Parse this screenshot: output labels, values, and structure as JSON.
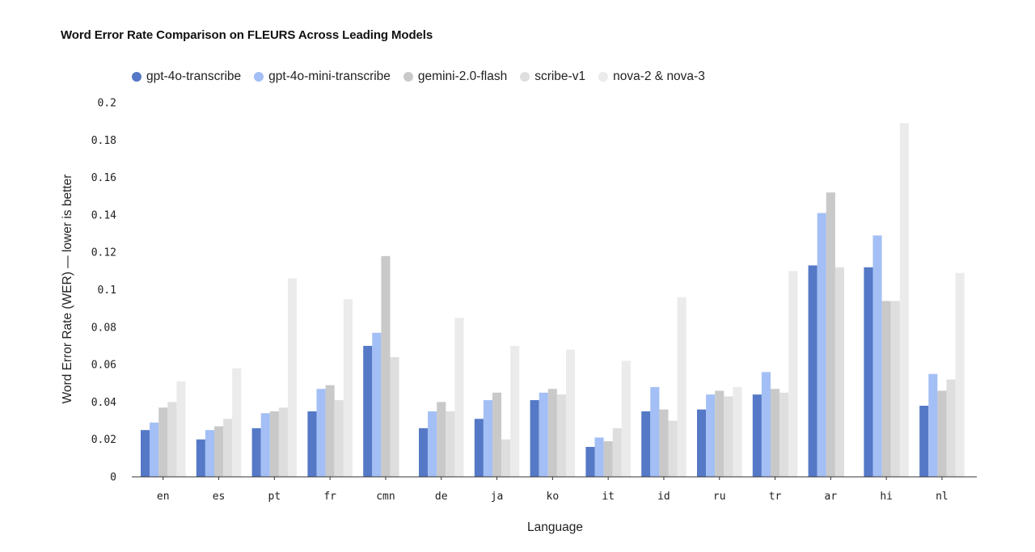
{
  "chart_data": {
    "type": "bar",
    "title": "Word Error Rate Comparison on FLEURS Across Leading Models",
    "xlabel": "Language",
    "ylabel": "Word Error Rate (WER) — lower is better",
    "ylim": [
      0,
      0.2
    ],
    "yticks": [
      "0",
      "0.02",
      "0.04",
      "0.06",
      "0.08",
      "0.1",
      "0.12",
      "0.14",
      "0.16",
      "0.18",
      "0.2"
    ],
    "grid": false,
    "legend_position": "top-left",
    "categories": [
      "en",
      "es",
      "pt",
      "fr",
      "cmn",
      "de",
      "ja",
      "ko",
      "it",
      "id",
      "ru",
      "tr",
      "ar",
      "hi",
      "nl"
    ],
    "series": [
      {
        "name": "gpt-4o-transcribe",
        "color": "#5579c6",
        "values": [
          0.025,
          0.02,
          0.026,
          0.035,
          0.07,
          0.026,
          0.031,
          0.041,
          0.016,
          0.035,
          0.036,
          0.044,
          0.113,
          0.112,
          0.038
        ]
      },
      {
        "name": "gpt-4o-mini-transcribe",
        "color": "#a3bff5",
        "values": [
          0.029,
          0.025,
          0.034,
          0.047,
          0.077,
          0.035,
          0.041,
          0.045,
          0.021,
          0.048,
          0.044,
          0.056,
          0.141,
          0.129,
          0.055
        ]
      },
      {
        "name": "gemini-2.0-flash",
        "color": "#c9c9c9",
        "values": [
          0.037,
          0.027,
          0.035,
          0.049,
          0.118,
          0.04,
          0.045,
          0.047,
          0.019,
          0.036,
          0.046,
          0.047,
          0.152,
          0.094,
          0.046
        ]
      },
      {
        "name": "scribe-v1",
        "color": "#dedede",
        "values": [
          0.04,
          0.031,
          0.037,
          0.041,
          0.064,
          0.035,
          0.02,
          0.044,
          0.026,
          0.03,
          0.043,
          0.045,
          0.112,
          0.094,
          0.052
        ]
      },
      {
        "name": "nova-2 & nova-3",
        "color": "#ebebeb",
        "values": [
          0.051,
          0.058,
          0.106,
          0.095,
          null,
          0.085,
          0.07,
          0.068,
          0.062,
          0.096,
          0.048,
          0.11,
          null,
          0.189,
          0.109
        ]
      }
    ]
  }
}
